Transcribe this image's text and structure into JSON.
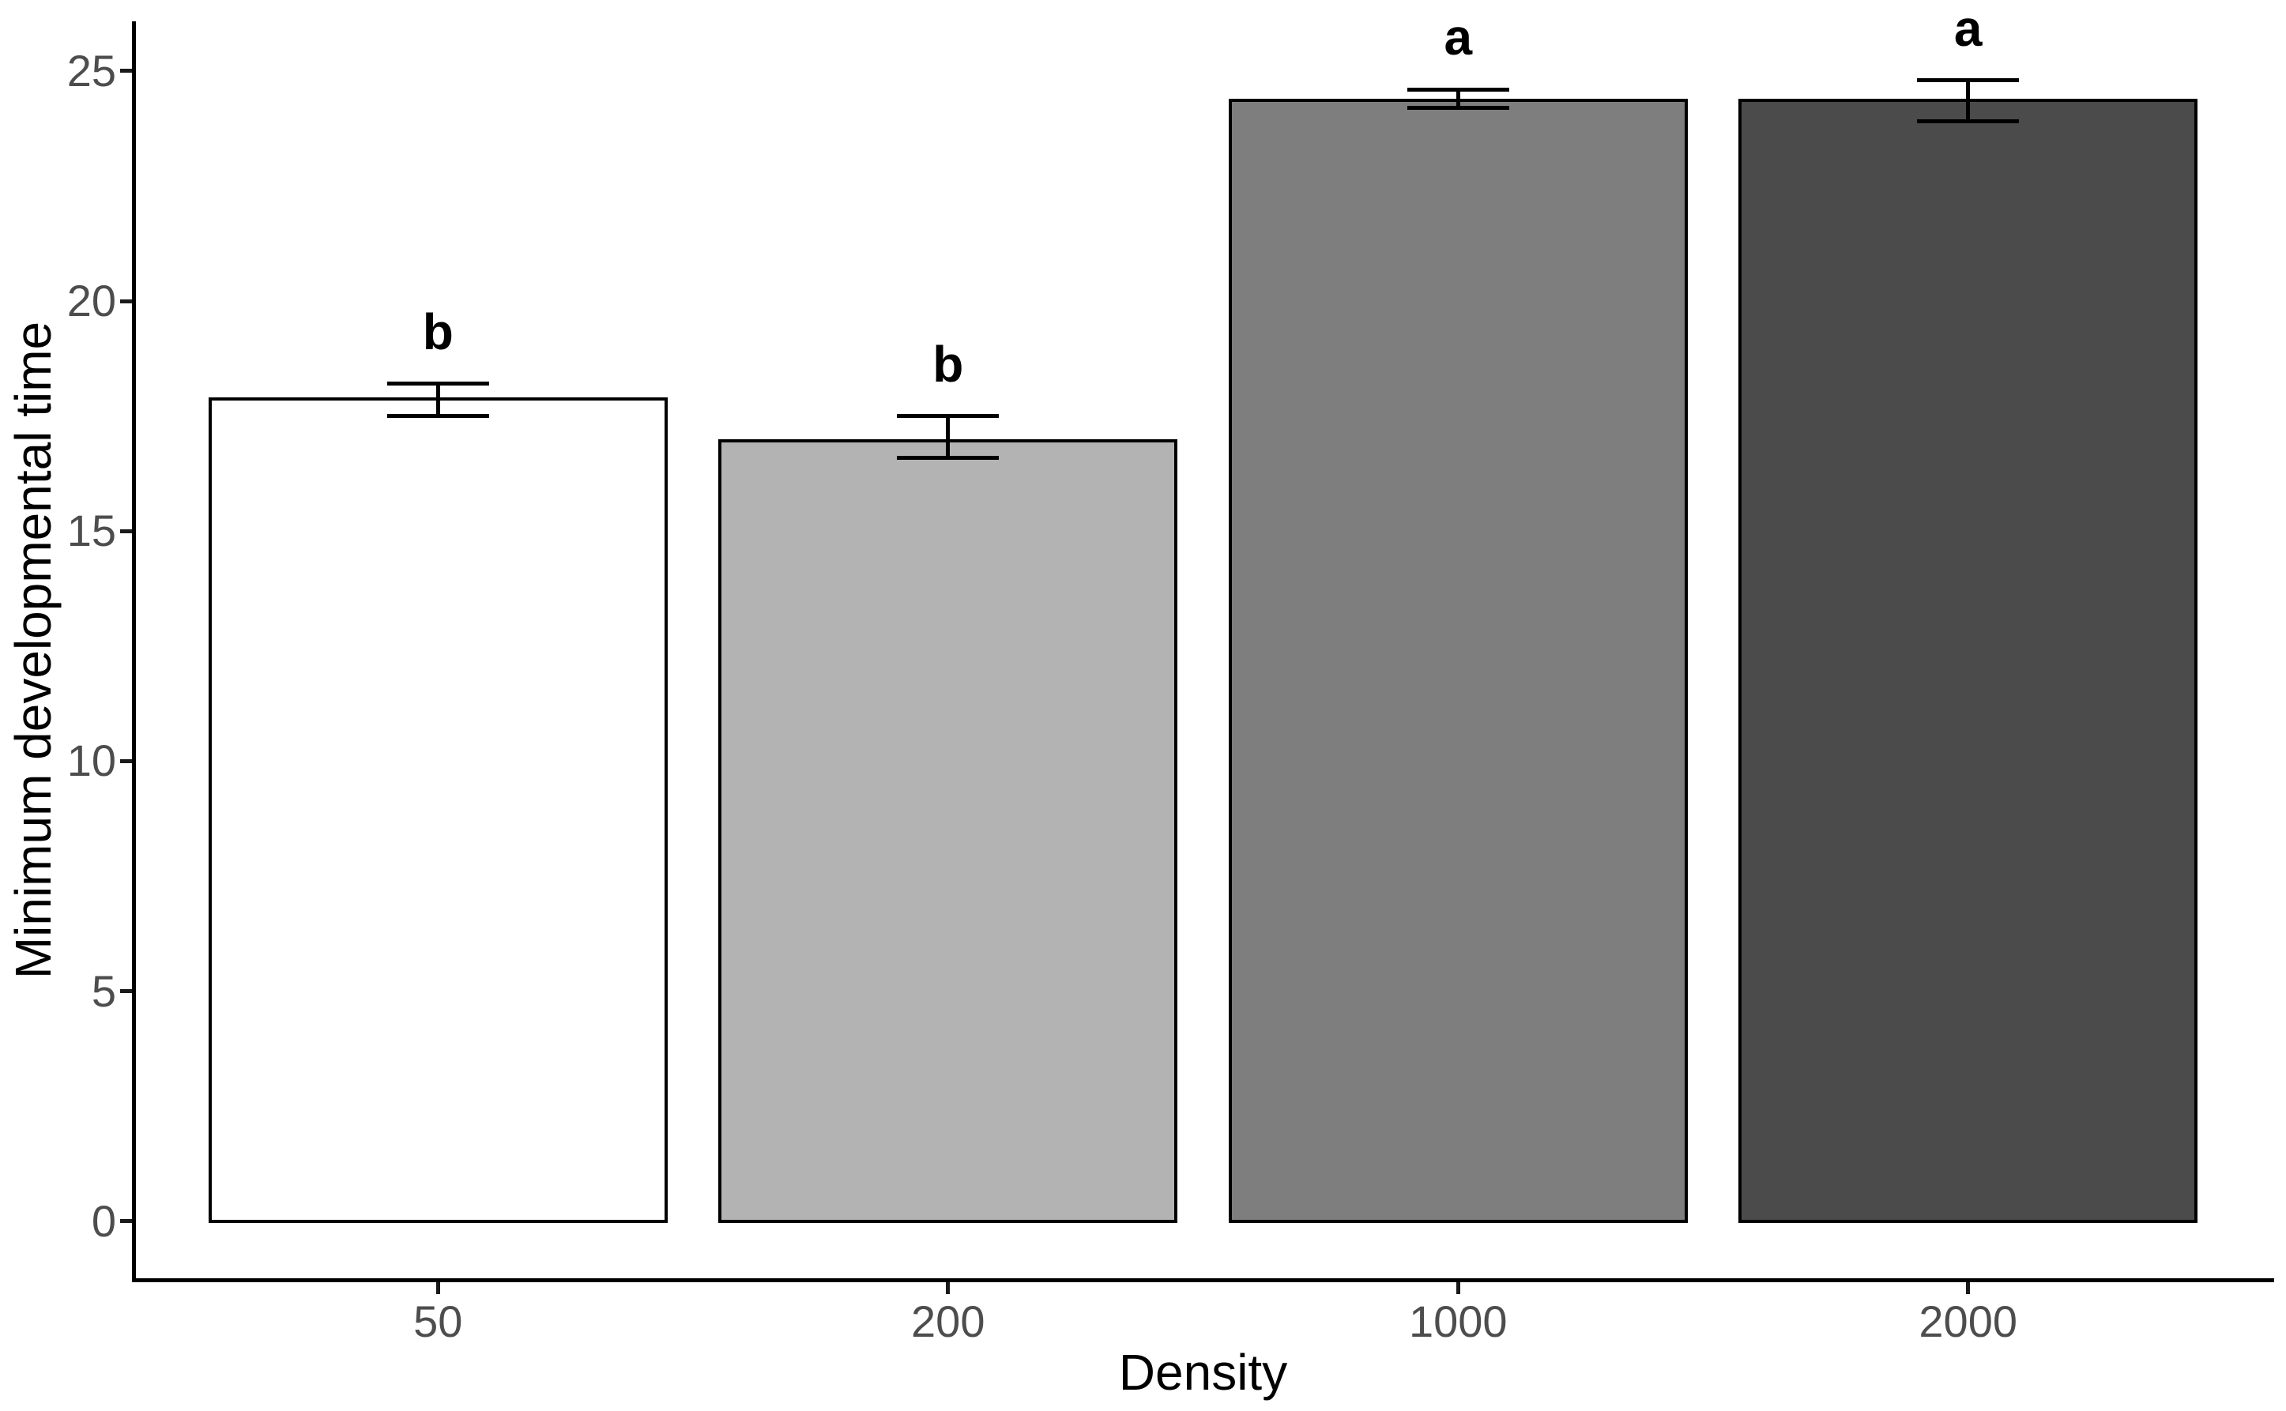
{
  "chart_data": {
    "type": "bar",
    "title": "",
    "xlabel": "Density",
    "ylabel": "Minimum developmental time",
    "categories": [
      "50",
      "200",
      "1000",
      "2000"
    ],
    "values": [
      17.9,
      17.0,
      24.4,
      24.4
    ],
    "error_upper": [
      18.2,
      17.5,
      24.6,
      24.8
    ],
    "error_lower": [
      17.5,
      16.6,
      24.2,
      23.9
    ],
    "sig_letters": [
      "b",
      "b",
      "a",
      "a"
    ],
    "bar_colors": [
      "#FFFFFF",
      "#B3B3B3",
      "#7E7E7E",
      "#4B4B4B"
    ],
    "bar_border_color": "#000000",
    "error_bar_color": "#000000",
    "y_ticks": [
      0,
      5,
      10,
      15,
      20,
      25
    ],
    "ylim": [
      -1.24,
      26.08
    ],
    "grid": false,
    "legend_position": "none",
    "axis_text_color": "#4D4D4D",
    "axis_title_color": "#000000",
    "axis_line_color": "#000000",
    "background_color": "#FFFFFF"
  }
}
